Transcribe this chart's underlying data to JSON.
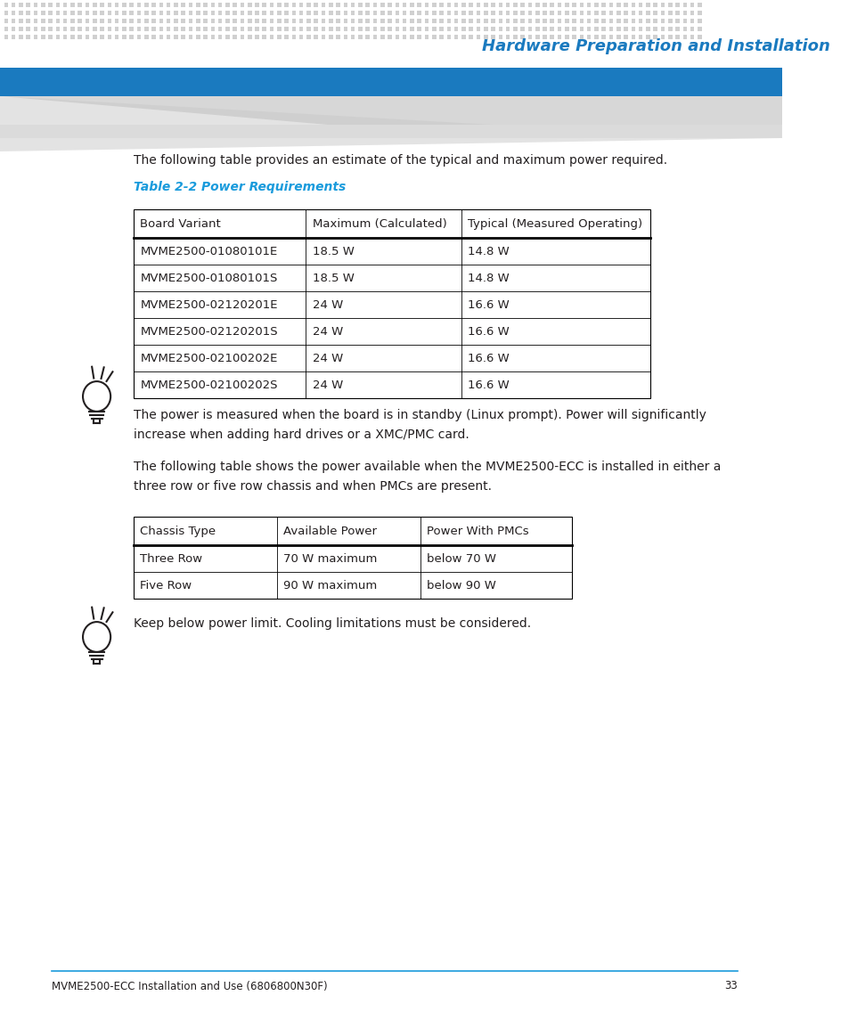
{
  "page_bg": "#ffffff",
  "header_title": "Hardware Preparation and Installation",
  "header_title_color": "#1a7abf",
  "header_blue_bar_color": "#1a7abf",
  "header_dot_color": "#d0d0d0",
  "intro_text1": "The following table provides an estimate of the typical and maximum power required.",
  "table1_caption": "Table 2-2 Power Requirements",
  "table1_caption_color": "#1a9bdc",
  "table1_headers": [
    "Board Variant",
    "Maximum (Calculated)",
    "Typical (Measured Operating)"
  ],
  "table1_rows": [
    [
      "MVME2500-01080101E",
      "18.5 W",
      "14.8 W"
    ],
    [
      "MVME2500-01080101S",
      "18.5 W",
      "14.8 W"
    ],
    [
      "MVME2500-02120201E",
      "24 W",
      "16.6 W"
    ],
    [
      "MVME2500-02120201S",
      "24 W",
      "16.6 W"
    ],
    [
      "MVME2500-02100202E",
      "24 W",
      "16.6 W"
    ],
    [
      "MVME2500-02100202S",
      "24 W",
      "16.6 W"
    ]
  ],
  "note1_text": "The power is measured when the board is in standby (Linux prompt). Power will significantly\nincrease when adding hard drives or a XMC/PMC card.",
  "intro_text2": "The following table shows the power available when the MVME2500-ECC is installed in either a\nthree row or five row chassis and when PMCs are present.",
  "table2_headers": [
    "Chassis Type",
    "Available Power",
    "Power With PMCs"
  ],
  "table2_rows": [
    [
      "Three Row",
      "70 W maximum",
      "below 70 W"
    ],
    [
      "Five Row",
      "90 W maximum",
      "below 90 W"
    ]
  ],
  "note2_text": "Keep below power limit. Cooling limitations must be considered.",
  "footer_text": "MVME2500-ECC Installation and Use (6806800N30F)",
  "footer_page": "33",
  "footer_line_color": "#1a9bdc",
  "text_color": "#231f20",
  "table_border_color": "#000000",
  "table_header_bottom_color": "#000000"
}
